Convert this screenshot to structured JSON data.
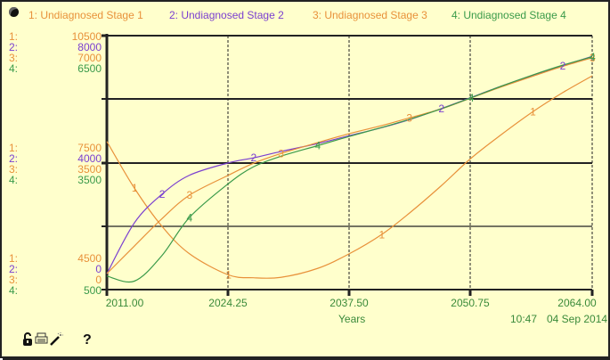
{
  "legend": [
    {
      "label": "1: Undiagnosed Stage 1",
      "color": "#e8913a"
    },
    {
      "label": "2: Undiagnosed Stage  2",
      "color": "#7a3fd0"
    },
    {
      "label": "3: Undiagnosed Stage  3",
      "color": "#e8913a"
    },
    {
      "label": "4: Undiagnosed Stage 4",
      "color": "#3a9a4a"
    }
  ],
  "scales": {
    "top": [
      {
        "idx": "1:",
        "val": "10500"
      },
      {
        "idx": "2:",
        "val": "8000"
      },
      {
        "idx": "3:",
        "val": "7000"
      },
      {
        "idx": "4:",
        "val": "6500"
      }
    ],
    "middle": [
      {
        "idx": "1:",
        "val": "7500"
      },
      {
        "idx": "2:",
        "val": "4000"
      },
      {
        "idx": "3:",
        "val": "3500"
      },
      {
        "idx": "4:",
        "val": "3500"
      }
    ],
    "bottom": [
      {
        "idx": "1:",
        "val": "4500"
      },
      {
        "idx": "2:",
        "val": "0"
      },
      {
        "idx": "3:",
        "val": "0"
      },
      {
        "idx": "4:",
        "val": "500"
      }
    ]
  },
  "x_axis": {
    "ticks": [
      "2011.00",
      "2024.25",
      "2037.50",
      "2050.75",
      "2064.00"
    ],
    "label": "Years"
  },
  "timestamp": {
    "time": "10:47",
    "date": "04 Sep 2014"
  },
  "toolbar": {
    "lock_icon": "🔓",
    "help_label": "?"
  },
  "chart_data": {
    "type": "line",
    "title": "",
    "xlabel": "Years",
    "xlim": [
      2011,
      2064
    ],
    "x": [
      2011,
      2014,
      2017,
      2020,
      2024.25,
      2027,
      2030,
      2034,
      2037.5,
      2041,
      2044,
      2047.5,
      2050.75,
      2054,
      2057.5,
      2060.75,
      2064
    ],
    "series": [
      {
        "name": "1: Undiagnosed Stage 1",
        "axis_range": [
          4500,
          10500
        ],
        "color": "#e8913a",
        "values": [
          8000,
          6900,
          6000,
          5350,
          4850,
          4780,
          4790,
          5000,
          5350,
          5800,
          6300,
          6950,
          7600,
          8150,
          8700,
          9150,
          9550
        ]
      },
      {
        "name": "2: Undiagnosed Stage  2",
        "axis_range": [
          0,
          8000
        ],
        "color": "#7a3fd0",
        "values": [
          500,
          2100,
          3000,
          3600,
          3990,
          4150,
          4350,
          4600,
          4850,
          5100,
          5350,
          5700,
          6050,
          6400,
          6750,
          7050,
          7350
        ]
      },
      {
        "name": "3: Undiagnosed Stage  3",
        "axis_range": [
          0,
          7000
        ],
        "color": "#e8913a",
        "values": [
          440,
          1200,
          1950,
          2600,
          3150,
          3480,
          3750,
          4050,
          4300,
          4520,
          4730,
          4980,
          5280,
          5580,
          5880,
          6150,
          6390
        ]
      },
      {
        "name": "4: Undiagnosed Stage 4",
        "axis_range": [
          500,
          6500
        ],
        "color": "#3a9a4a",
        "values": [
          820,
          700,
          1300,
          2200,
          3000,
          3400,
          3650,
          3900,
          4120,
          4330,
          4520,
          4770,
          5030,
          5300,
          5570,
          5800,
          6000
        ]
      }
    ],
    "y_scales": [
      {
        "series": 1,
        "ticks": [
          4500,
          7500,
          10500
        ]
      },
      {
        "series": 2,
        "ticks": [
          0,
          4000,
          8000
        ]
      },
      {
        "series": 3,
        "ticks": [
          0,
          3500,
          7000
        ]
      },
      {
        "series": 4,
        "ticks": [
          500,
          3500,
          6500
        ]
      }
    ],
    "grid": true,
    "legend_position": "top"
  }
}
